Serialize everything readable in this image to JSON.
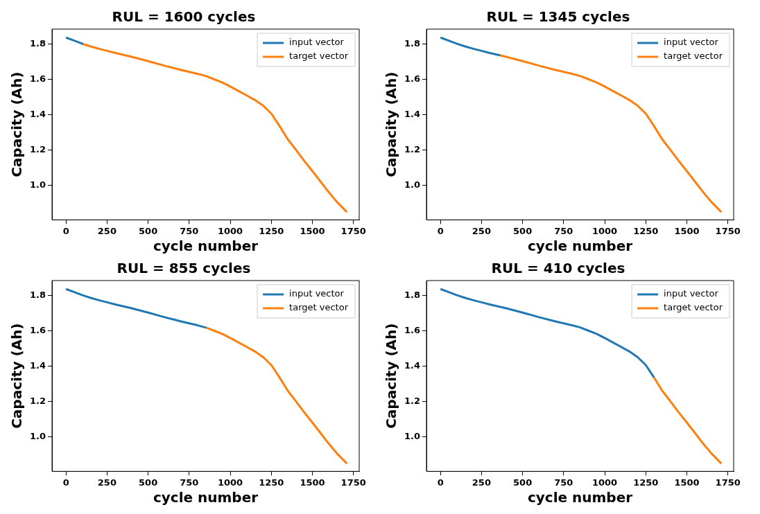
{
  "chart_data": [
    {
      "type": "line",
      "title": "RUL = 1600 cycles",
      "xlabel": "cycle number",
      "ylabel": "Capacity (Ah)",
      "xlim": [
        -85,
        1785
      ],
      "xticks": [
        0,
        250,
        500,
        750,
        1000,
        1250,
        1500,
        1750
      ],
      "ylim": [
        0.804,
        1.883
      ],
      "yticks": [
        {
          "value": 1,
          "label": "1.0"
        },
        {
          "value": 1.2,
          "label": "1.2"
        },
        {
          "value": 1.4,
          "label": "1.4"
        },
        {
          "value": 1.6,
          "label": "1.6"
        },
        {
          "value": 1.8,
          "label": "1.8"
        }
      ],
      "legend": "top right",
      "grid": false,
      "marker": "none",
      "series": [
        {
          "name": "input vector",
          "color": "#1f77b4",
          "x": [
            0,
            50,
            100,
            105
          ],
          "values": [
            1.835,
            1.818,
            1.8,
            1.798
          ]
        },
        {
          "name": "target vector",
          "color": "#ff7f0e",
          "x": [
            105,
            150,
            200,
            250,
            300,
            400,
            500,
            600,
            700,
            800,
            850,
            900,
            950,
            1000,
            1050,
            1100,
            1150,
            1200,
            1250,
            1300,
            1350,
            1400,
            1450,
            1500,
            1550,
            1600,
            1650,
            1710
          ],
          "values": [
            1.798,
            1.785,
            1.772,
            1.76,
            1.748,
            1.726,
            1.702,
            1.676,
            1.652,
            1.63,
            1.618,
            1.6,
            1.582,
            1.558,
            1.533,
            1.508,
            1.482,
            1.45,
            1.405,
            1.335,
            1.26,
            1.2,
            1.138,
            1.08,
            1.02,
            0.96,
            0.905,
            0.848
          ]
        }
      ]
    },
    {
      "type": "line",
      "title": "RUL = 1345 cycles",
      "xlabel": "cycle number",
      "ylabel": "Capacity (Ah)",
      "xlim": [
        -85,
        1785
      ],
      "xticks": [
        0,
        250,
        500,
        750,
        1000,
        1250,
        1500,
        1750
      ],
      "ylim": [
        0.804,
        1.883
      ],
      "yticks": [
        {
          "value": 1,
          "label": "1.0"
        },
        {
          "value": 1.2,
          "label": "1.2"
        },
        {
          "value": 1.4,
          "label": "1.4"
        },
        {
          "value": 1.6,
          "label": "1.6"
        },
        {
          "value": 1.8,
          "label": "1.8"
        }
      ],
      "legend": "top right",
      "grid": false,
      "marker": "none",
      "series": [
        {
          "name": "input vector",
          "color": "#1f77b4",
          "x": [
            0,
            50,
            100,
            150,
            200,
            250,
            300,
            365
          ],
          "values": [
            1.835,
            1.818,
            1.8,
            1.785,
            1.772,
            1.76,
            1.748,
            1.734
          ]
        },
        {
          "name": "target vector",
          "color": "#ff7f0e",
          "x": [
            365,
            400,
            500,
            600,
            700,
            800,
            850,
            900,
            950,
            1000,
            1050,
            1100,
            1150,
            1200,
            1250,
            1300,
            1350,
            1400,
            1450,
            1500,
            1550,
            1600,
            1650,
            1710
          ],
          "values": [
            1.734,
            1.726,
            1.702,
            1.676,
            1.652,
            1.63,
            1.618,
            1.6,
            1.582,
            1.558,
            1.533,
            1.508,
            1.482,
            1.45,
            1.405,
            1.335,
            1.26,
            1.2,
            1.138,
            1.08,
            1.02,
            0.96,
            0.905,
            0.848
          ]
        }
      ]
    },
    {
      "type": "line",
      "title": "RUL = 855 cycles",
      "xlabel": "cycle number",
      "ylabel": "Capacity (Ah)",
      "xlim": [
        -85,
        1785
      ],
      "xticks": [
        0,
        250,
        500,
        750,
        1000,
        1250,
        1500,
        1750
      ],
      "ylim": [
        0.804,
        1.883
      ],
      "yticks": [
        {
          "value": 1,
          "label": "1.0"
        },
        {
          "value": 1.2,
          "label": "1.2"
        },
        {
          "value": 1.4,
          "label": "1.4"
        },
        {
          "value": 1.6,
          "label": "1.6"
        },
        {
          "value": 1.8,
          "label": "1.8"
        }
      ],
      "legend": "top right",
      "grid": false,
      "marker": "none",
      "series": [
        {
          "name": "input vector",
          "color": "#1f77b4",
          "x": [
            0,
            50,
            100,
            150,
            200,
            250,
            300,
            400,
            500,
            600,
            700,
            800,
            855
          ],
          "values": [
            1.835,
            1.818,
            1.8,
            1.785,
            1.772,
            1.76,
            1.748,
            1.726,
            1.702,
            1.676,
            1.652,
            1.63,
            1.616
          ]
        },
        {
          "name": "target vector",
          "color": "#ff7f0e",
          "x": [
            855,
            900,
            950,
            1000,
            1050,
            1100,
            1150,
            1200,
            1250,
            1300,
            1350,
            1400,
            1450,
            1500,
            1550,
            1600,
            1650,
            1710
          ],
          "values": [
            1.616,
            1.6,
            1.582,
            1.558,
            1.533,
            1.508,
            1.482,
            1.45,
            1.405,
            1.335,
            1.26,
            1.2,
            1.138,
            1.08,
            1.02,
            0.96,
            0.905,
            0.848
          ]
        }
      ]
    },
    {
      "type": "line",
      "title": "RUL = 410 cycles",
      "xlabel": "cycle number",
      "ylabel": "Capacity (Ah)",
      "xlim": [
        -85,
        1785
      ],
      "xticks": [
        0,
        250,
        500,
        750,
        1000,
        1250,
        1500,
        1750
      ],
      "ylim": [
        0.804,
        1.883
      ],
      "yticks": [
        {
          "value": 1,
          "label": "1.0"
        },
        {
          "value": 1.2,
          "label": "1.2"
        },
        {
          "value": 1.4,
          "label": "1.4"
        },
        {
          "value": 1.6,
          "label": "1.6"
        },
        {
          "value": 1.8,
          "label": "1.8"
        }
      ],
      "legend": "top right",
      "grid": false,
      "marker": "none",
      "series": [
        {
          "name": "input vector",
          "color": "#1f77b4",
          "x": [
            0,
            50,
            100,
            150,
            200,
            250,
            300,
            400,
            500,
            600,
            700,
            800,
            850,
            900,
            950,
            1000,
            1050,
            1100,
            1150,
            1200,
            1250,
            1300
          ],
          "values": [
            1.835,
            1.818,
            1.8,
            1.785,
            1.772,
            1.76,
            1.748,
            1.726,
            1.702,
            1.676,
            1.652,
            1.63,
            1.618,
            1.6,
            1.582,
            1.558,
            1.533,
            1.508,
            1.482,
            1.45,
            1.405,
            1.335
          ]
        },
        {
          "name": "target vector",
          "color": "#ff7f0e",
          "x": [
            1300,
            1350,
            1400,
            1450,
            1500,
            1550,
            1600,
            1650,
            1710
          ],
          "values": [
            1.335,
            1.26,
            1.2,
            1.138,
            1.08,
            1.02,
            0.96,
            0.905,
            0.848
          ]
        }
      ]
    }
  ]
}
